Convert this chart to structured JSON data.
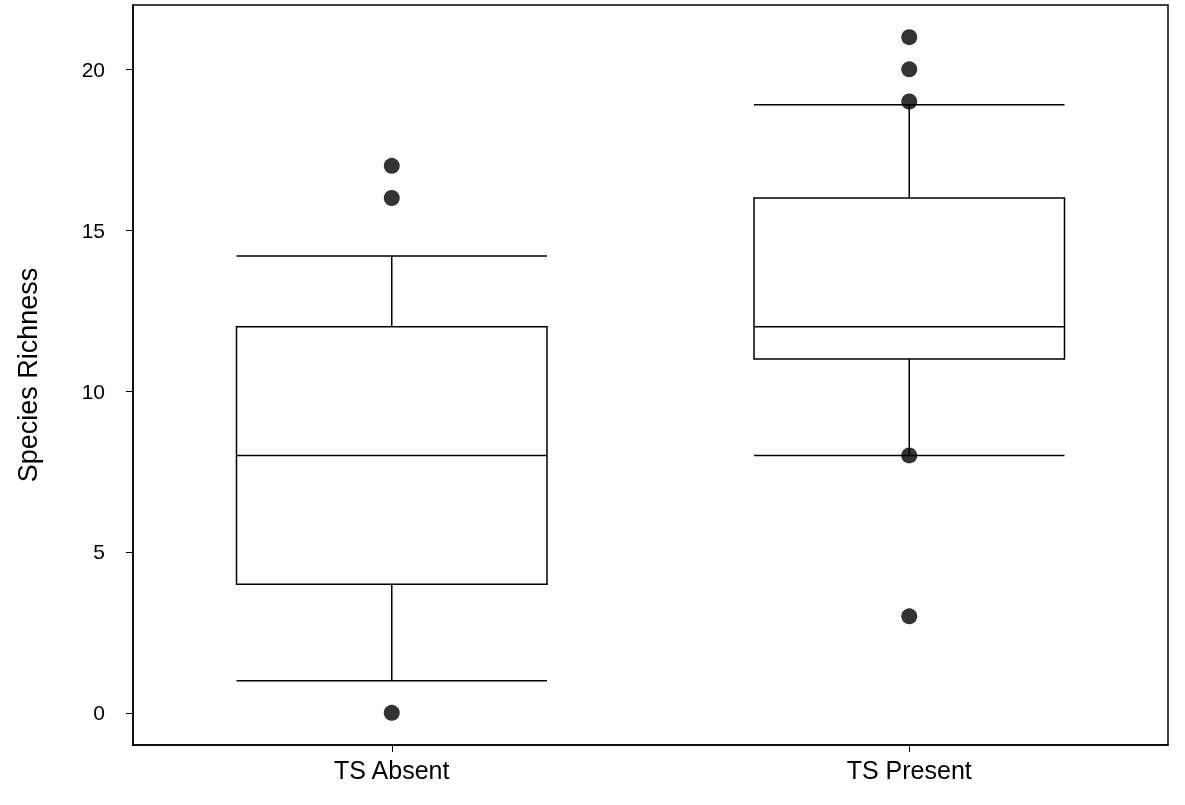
{
  "chart_data": {
    "type": "box",
    "ylabel": "Species Richness",
    "categories": [
      "TS Absent",
      "TS Present"
    ],
    "boxes": [
      {
        "low": 1,
        "q1": 4,
        "median": 8,
        "q3": 12,
        "high": 14.2,
        "outliers": [
          0,
          16,
          17
        ]
      },
      {
        "low": 8,
        "q1": 11,
        "median": 12,
        "q3": 16,
        "high": 18.9,
        "outliers": [
          3,
          8,
          19,
          20,
          21
        ]
      }
    ],
    "color": "#000000",
    "marker": "circle",
    "ylim": [
      -1,
      22
    ],
    "yticks": [
      0,
      5,
      10,
      15,
      20
    ]
  }
}
